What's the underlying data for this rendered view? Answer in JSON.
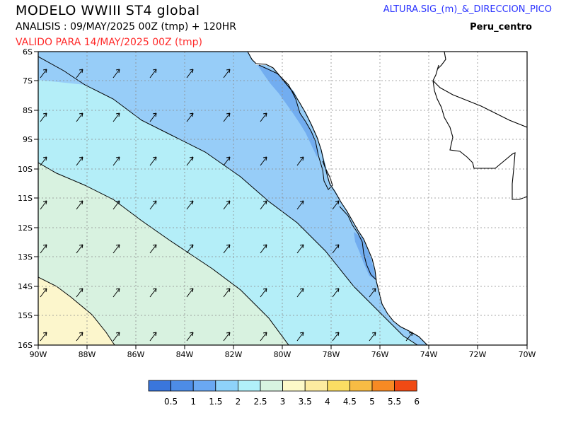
{
  "header": {
    "title": "MODELO  WWIII  ST4  global",
    "analysis": "ANALISIS : 09/MAY/2025 00Z  (tmp) + 120HR",
    "valid": "VALIDO PARA  14/MAY/2025 00Z  (tmp)",
    "variable": "ALTURA.SIG_(m)_&_DIRECCION_PICO",
    "region": "Peru_centro"
  },
  "map": {
    "lon_range": [
      -90,
      -70
    ],
    "lat_range": [
      -16,
      -6
    ],
    "x_ticks": [
      "90W",
      "88W",
      "86W",
      "84W",
      "82W",
      "80W",
      "78W",
      "76W",
      "74W",
      "72W",
      "70W"
    ],
    "y_ticks": [
      "6S",
      "7S",
      "8S",
      "9S",
      "10S",
      "11S",
      "12S",
      "13S",
      "14S",
      "15S",
      "16S"
    ],
    "grid": true,
    "arrow_direction": "toward north-east"
  },
  "legend": {
    "labels": [
      "0.5",
      "1",
      "1.5",
      "2",
      "2.5",
      "3",
      "3.5",
      "4",
      "4.5",
      "5",
      "5.5",
      "6"
    ],
    "colors": [
      "#3a76dc",
      "#4d8ce6",
      "#6aa8f2",
      "#8ed2fa",
      "#b1f0f9",
      "#d8f4e0",
      "#fdf9c8",
      "#fdeba0",
      "#fbdd63",
      "#f8bc44",
      "#f78a24",
      "#f04a14"
    ]
  },
  "colors": {
    "band_1_5_2": "#97cdf8",
    "band_1_2": "#72adf0",
    "band_2_2_5": "#b4eef8",
    "band_2_5_3": "#d8f2e0",
    "band_3_3_5": "#fcf6cc"
  }
}
